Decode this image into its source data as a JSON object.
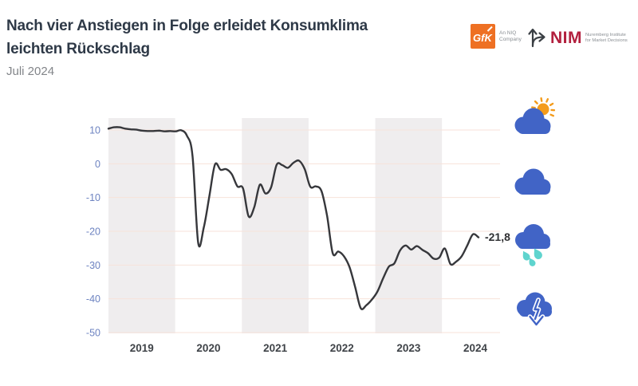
{
  "header": {
    "title_line1": "Nach vier Anstiegen in Folge erleidet Konsumklima",
    "title_line2": "leichten Rückschlag",
    "subtitle": "Juli 2024"
  },
  "logos": {
    "gfk": {
      "name": "GfK",
      "tagline_line1": "An NIQ",
      "tagline_line2": "Company",
      "brand_color": "#EE7023"
    },
    "nim": {
      "name": "NIM",
      "tagline_line1": "Nuremberg Institute",
      "tagline_line2": "for Market Decisions",
      "brand_color": "#B2203E"
    }
  },
  "chart_data": {
    "type": "line",
    "title": "",
    "xlabel": "",
    "ylabel": "",
    "x_year_labels": [
      "2019",
      "2020",
      "2021",
      "2022",
      "2023",
      "2024"
    ],
    "shaded_years": [
      "2019",
      "2021",
      "2023"
    ],
    "y_ticks": [
      10,
      0,
      -10,
      -20,
      -30,
      -40,
      -50
    ],
    "ylim": [
      -50,
      10
    ],
    "grid": "horizontal",
    "legend_position": "none",
    "series": [
      {
        "name": "Konsumklima",
        "start": "2019-01",
        "interval": "monthly",
        "values": [
          10.4,
          10.8,
          10.8,
          10.4,
          10.2,
          10.1,
          9.8,
          9.7,
          9.7,
          9.8,
          9.6,
          9.7,
          9.6,
          9.9,
          8.3,
          2.3,
          -23.4,
          -18.9,
          -9.6,
          -0.2,
          -1.8,
          -1.6,
          -3.1,
          -6.7,
          -7.3,
          -15.6,
          -12.9,
          -6.2,
          -8.8,
          -7,
          -0.3,
          -0.4,
          -1.2,
          0.3,
          0.9,
          -1.6,
          -6.8,
          -6.7,
          -8.1,
          -15.5,
          -26.5,
          -26,
          -27.4,
          -30.6,
          -36.5,
          -42.8,
          -41.9,
          -40.2,
          -37.8,
          -33.9,
          -30.5,
          -29.5,
          -25.7,
          -24.2,
          -25.4,
          -24.4,
          -25.5,
          -26.5,
          -28.1,
          -27.8,
          -25.1,
          -29.7,
          -29,
          -27.4,
          -24.2,
          -20.9,
          -21.8
        ]
      }
    ],
    "last_point": {
      "month": "2024-07",
      "value": -21.8,
      "label": "-21,8"
    }
  },
  "weather_scale_icons": [
    {
      "icon": "sun-behind-cloud-icon"
    },
    {
      "icon": "cloud-icon"
    },
    {
      "icon": "rain-cloud-icon"
    },
    {
      "icon": "cloud-down-arrow-icon"
    }
  ],
  "colors": {
    "line": "#36373B",
    "band": "#EFEDEE",
    "gridline": "#F7E2DA",
    "y_tick_label": "#6D83C1",
    "x_tick_label": "#3F4348",
    "value_label": "#2F3033",
    "cloud_blue": "#4164C6",
    "raindrop_teal": "#5FD4CE",
    "sun_orange": "#F49B1B",
    "title_text": "#2E3947",
    "subtitle_text": "#828589"
  }
}
